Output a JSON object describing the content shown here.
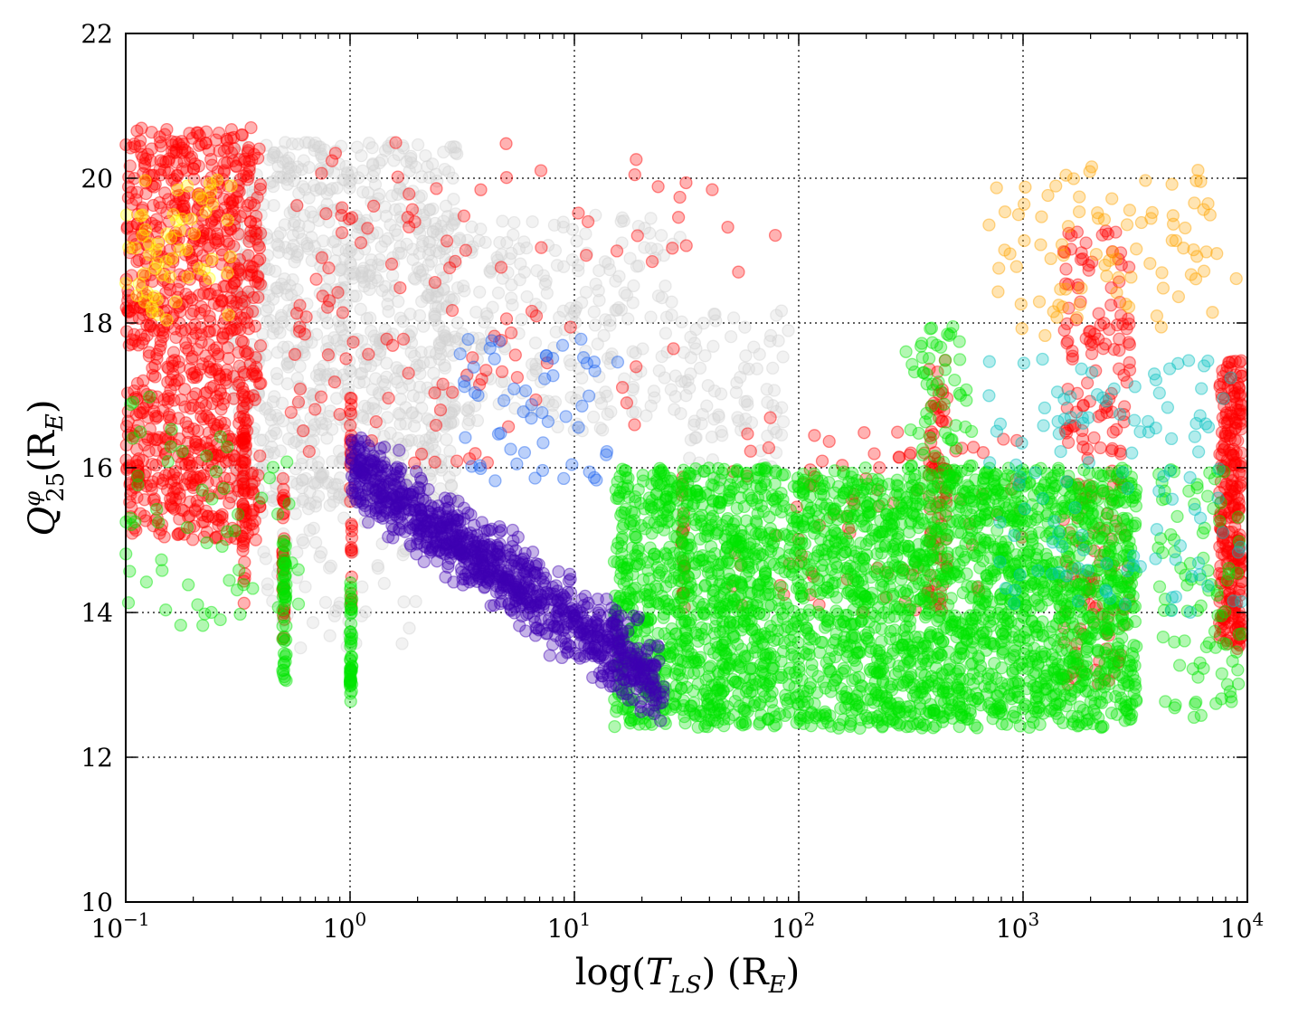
{
  "chart_data": {
    "type": "scatter",
    "title": "",
    "x_scale": "log",
    "xlim": [
      0.1,
      10000
    ],
    "ylim": [
      10,
      22
    ],
    "grid": true,
    "grid_style": "dotted",
    "xlabel": {
      "prefix": "log(",
      "var": "T",
      "sub": "LS",
      "suffix": ") (R",
      "unit_sub": "E",
      "close": ")"
    },
    "ylabel": {
      "var": "Q",
      "sup": "φ",
      "sub": "25",
      "mid": "(R",
      "unit_sub": "E",
      "close": ")"
    },
    "x_ticks": [
      {
        "value": 0.1,
        "base": "10",
        "exp": "−1"
      },
      {
        "value": 1,
        "base": "10",
        "exp": "0"
      },
      {
        "value": 10,
        "base": "10",
        "exp": "1"
      },
      {
        "value": 100,
        "base": "10",
        "exp": "2"
      },
      {
        "value": 1000,
        "base": "10",
        "exp": "3"
      },
      {
        "value": 10000,
        "base": "10",
        "exp": "4"
      }
    ],
    "y_ticks": [
      {
        "value": 10,
        "label": "10"
      },
      {
        "value": 12,
        "label": "12"
      },
      {
        "value": 14,
        "label": "14"
      },
      {
        "value": 16,
        "label": "16"
      },
      {
        "value": 18,
        "label": "18"
      },
      {
        "value": 20,
        "label": "20"
      },
      {
        "value": 22,
        "label": "22"
      }
    ],
    "point_alpha": 0.3,
    "series": [
      {
        "color": "#d3d3d3",
        "clusters": [
          {
            "x_range": [
              0.3,
              3
            ],
            "y_range": [
              15.5,
              20.5
            ],
            "n": 900
          },
          {
            "x_range": [
              2,
              30
            ],
            "y_range": [
              16.5,
              19.5
            ],
            "n": 280
          },
          {
            "x_range": [
              30,
              90
            ],
            "y_range": [
              15.8,
              18.2
            ],
            "n": 90
          },
          {
            "x_range": [
              0.4,
              2
            ],
            "y_range": [
              13.5,
              15.5
            ],
            "n": 60
          }
        ]
      },
      {
        "color": "#ff0000",
        "clusters": [
          {
            "x_range": [
              0.1,
              0.4
            ],
            "y_range": [
              15,
              20.7
            ],
            "n": 950
          },
          {
            "x_range": [
              0.33,
              0.34
            ],
            "y_range": [
              14,
              17
            ],
            "n": 40
          },
          {
            "x_range": [
              0.5,
              0.51
            ],
            "y_range": [
              13.5,
              16
            ],
            "n": 35
          },
          {
            "x_range": [
              1,
              1.02
            ],
            "y_range": [
              14,
              17
            ],
            "n": 30
          },
          {
            "x_range": [
              0.5,
              5
            ],
            "y_range": [
              16,
              20.5
            ],
            "n": 90
          },
          {
            "x_range": [
              5,
              100
            ],
            "y_range": [
              16.5,
              20.3
            ],
            "n": 35
          },
          {
            "x_range": [
              30,
              31
            ],
            "y_range": [
              14,
              16
            ],
            "n": 20
          },
          {
            "x_range": [
              380,
              460
            ],
            "y_range": [
              14,
              17.5
            ],
            "n": 70
          },
          {
            "x_range": [
              1500,
              3000
            ],
            "y_range": [
              13,
              19.5
            ],
            "n": 200
          },
          {
            "x_range": [
              7500,
              9500
            ],
            "y_range": [
              13.5,
              17.5
            ],
            "n": 280
          },
          {
            "x_range": [
              50,
              1000
            ],
            "y_range": [
              14,
              16.5
            ],
            "n": 90
          }
        ]
      },
      {
        "color": "#ffff00",
        "clusters": [
          {
            "x_range": [
              0.1,
              0.3
            ],
            "y_range": [
              18,
              20
            ],
            "n": 60
          }
        ]
      },
      {
        "color": "#00e600",
        "clusters": [
          {
            "x_range": [
              15,
              3200
            ],
            "y_range": [
              12.4,
              16
            ],
            "n": 3000
          },
          {
            "x_range": [
              0.5,
              0.52
            ],
            "y_range": [
              13,
              15
            ],
            "n": 50
          },
          {
            "x_range": [
              1,
              1.02
            ],
            "y_range": [
              12.7,
              14.5
            ],
            "n": 50
          },
          {
            "x_range": [
              300,
              600
            ],
            "y_range": [
              15.5,
              18
            ],
            "n": 70
          },
          {
            "x_range": [
              0.1,
              0.6
            ],
            "y_range": [
              13.8,
              17
            ],
            "n": 60
          },
          {
            "x_range": [
              4000,
              9500
            ],
            "y_range": [
              12.5,
              16
            ],
            "n": 90
          }
        ]
      },
      {
        "color": "#3f00b2",
        "clusters": [
          {
            "x_range": [
              1,
              25
            ],
            "y_range": [
              12.5,
              16.5
            ],
            "n": 1000,
            "trend": true
          }
        ]
      },
      {
        "color": "#1e64f0",
        "clusters": [
          {
            "x_range": [
              3,
              16
            ],
            "y_range": [
              15.8,
              17.8
            ],
            "n": 55
          }
        ]
      },
      {
        "color": "#00bfbf",
        "clusters": [
          {
            "x_range": [
              700,
              9500
            ],
            "y_range": [
              14,
              17.5
            ],
            "n": 120
          }
        ]
      },
      {
        "color": "#ffa500",
        "clusters": [
          {
            "x_range": [
              700,
              9000
            ],
            "y_range": [
              17.8,
              20.2
            ],
            "n": 90
          }
        ]
      }
    ]
  }
}
